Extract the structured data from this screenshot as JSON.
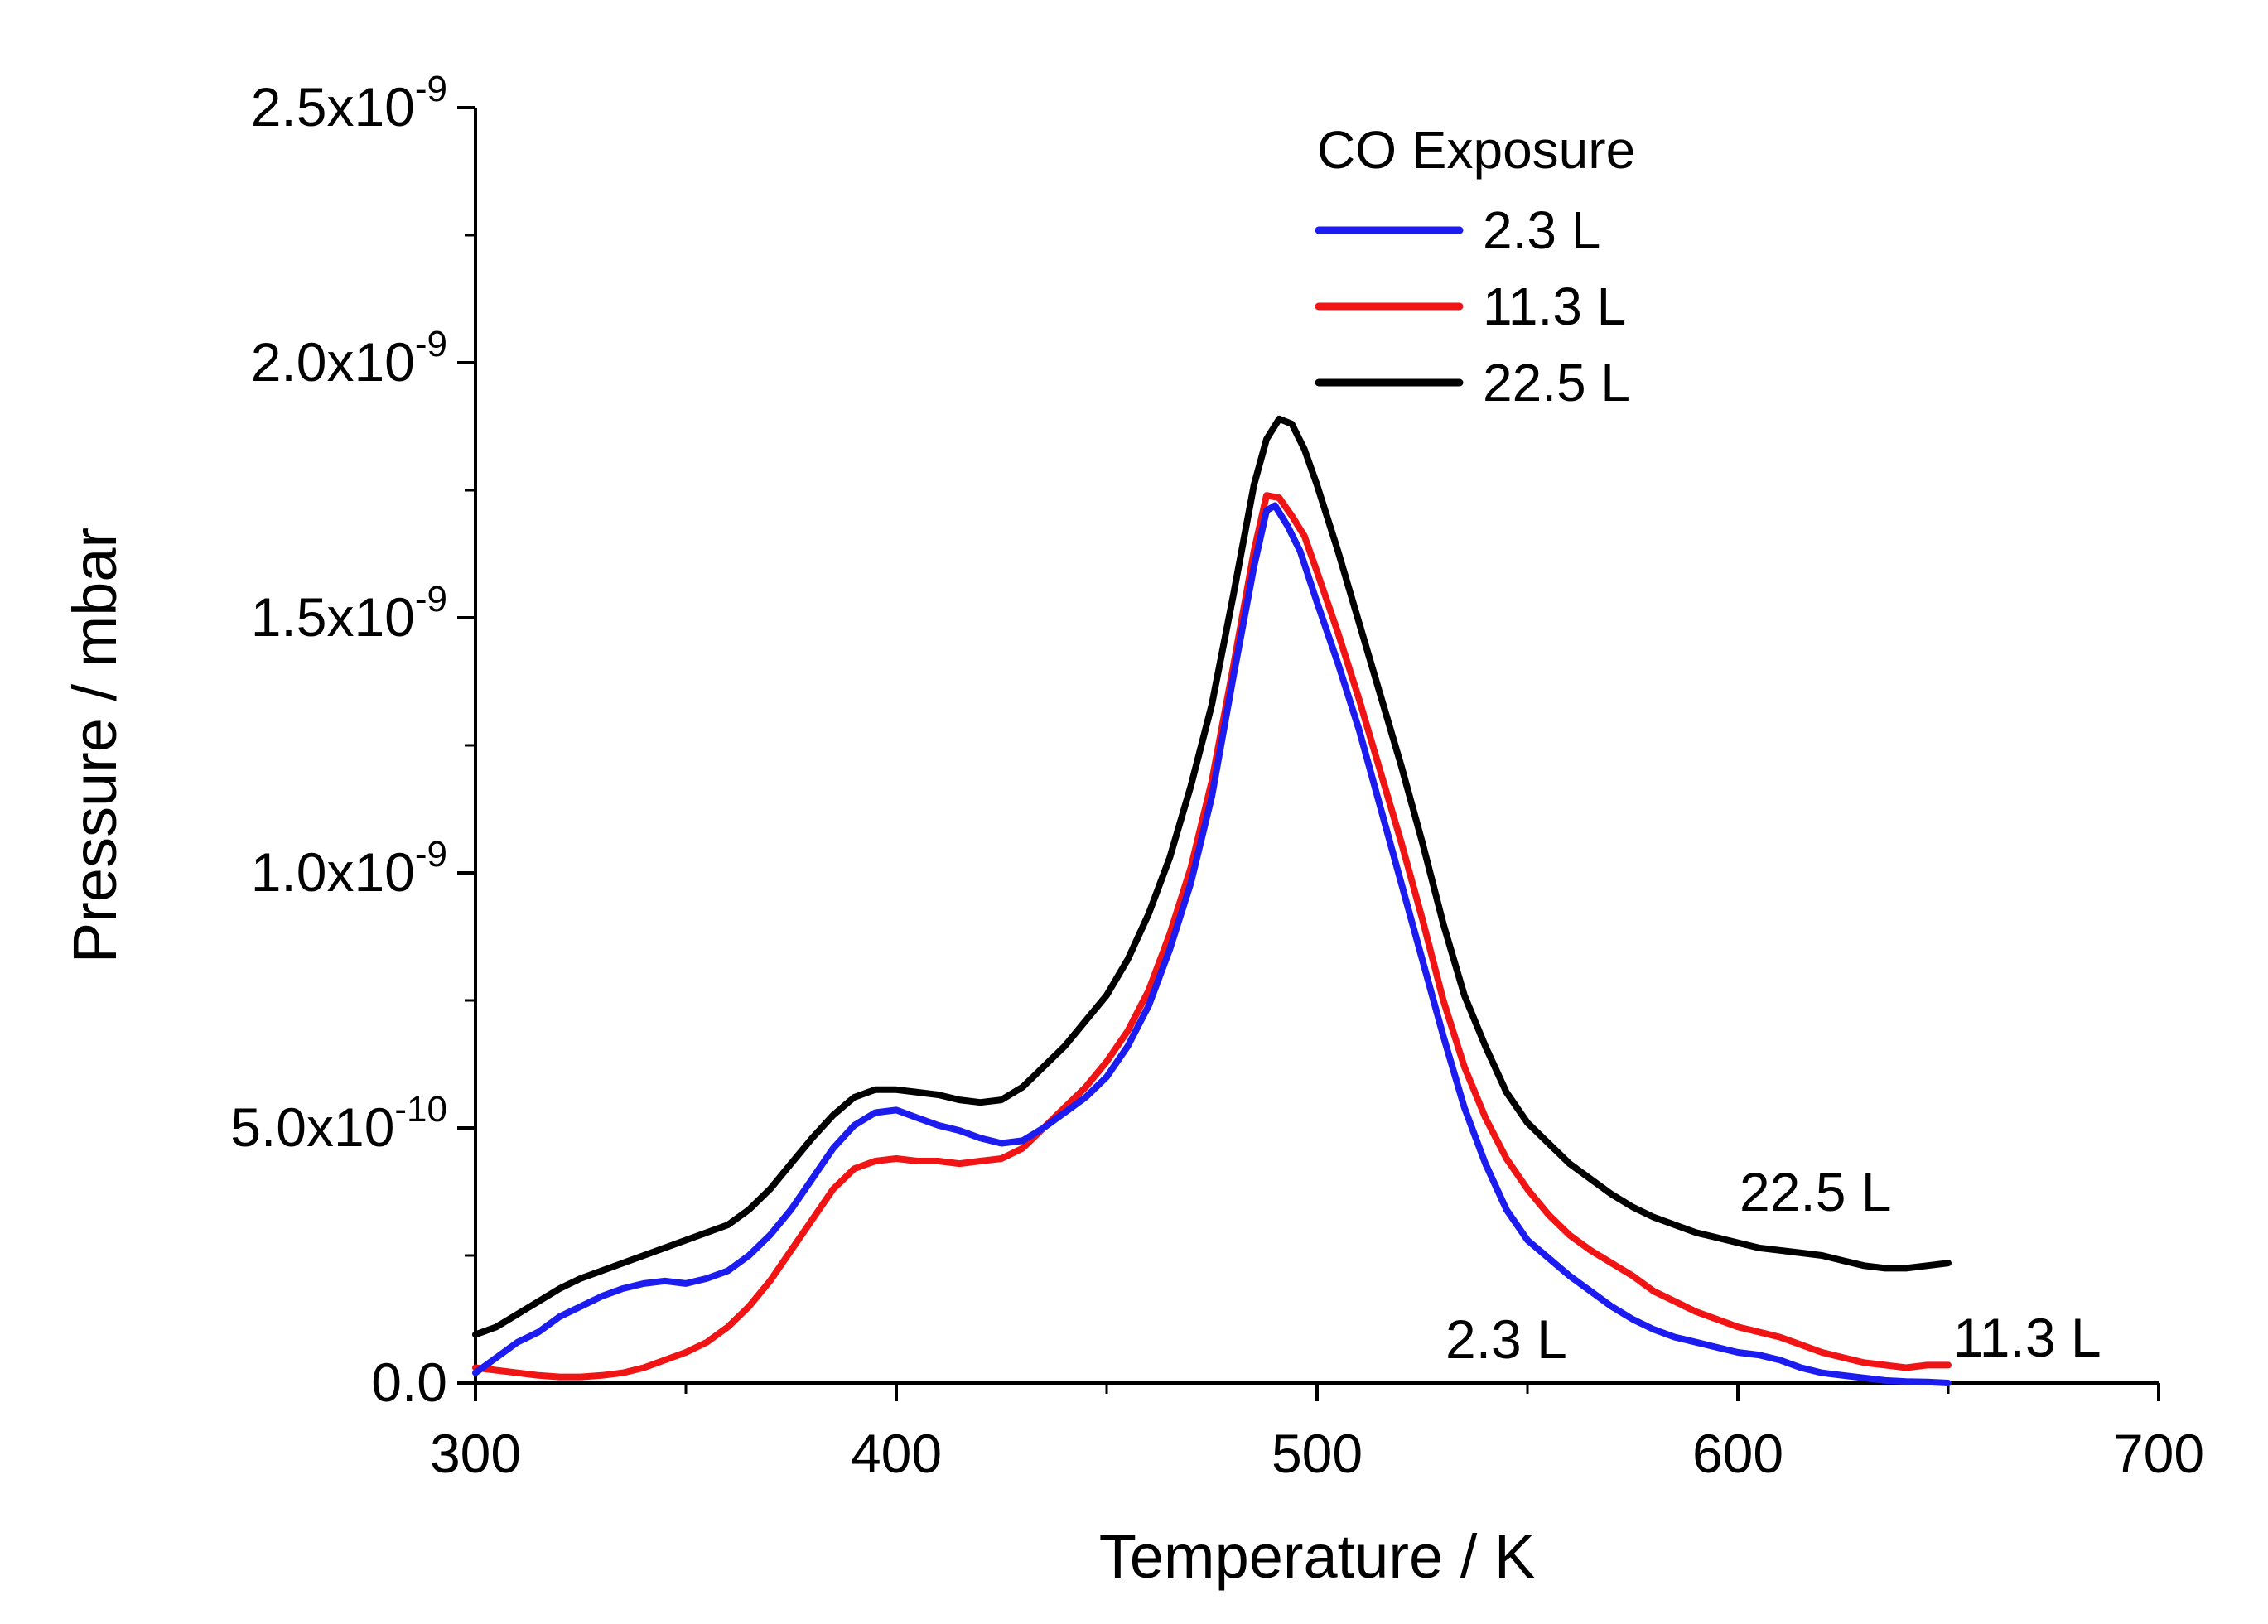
{
  "chart_data": {
    "type": "line",
    "title": "",
    "xlabel": "Temperature / K",
    "ylabel": "Pressure / mbar",
    "xlim": [
      300,
      700
    ],
    "ylim": [
      0,
      2.5e-09
    ],
    "grid": false,
    "x_ticks": [
      {
        "value": 300,
        "label": "300"
      },
      {
        "value": 400,
        "label": "400"
      },
      {
        "value": 500,
        "label": "500"
      },
      {
        "value": 600,
        "label": "600"
      },
      {
        "value": 700,
        "label": "700"
      }
    ],
    "y_ticks": [
      {
        "value": 0,
        "mantissa": "0.0",
        "exponent": ""
      },
      {
        "value": 5e-10,
        "mantissa": "5.0x10",
        "exponent": "-10"
      },
      {
        "value": 1e-09,
        "mantissa": "1.0x10",
        "exponent": "-9"
      },
      {
        "value": 1.5e-09,
        "mantissa": "1.5x10",
        "exponent": "-9"
      },
      {
        "value": 2e-09,
        "mantissa": "2.0x10",
        "exponent": "-9"
      },
      {
        "value": 2.5e-09,
        "mantissa": "2.5x10",
        "exponent": "-9"
      }
    ],
    "legend": {
      "title": "CO Exposure",
      "position": "top-center"
    },
    "series": [
      {
        "name": "2.3 L",
        "color": "#1c1cf0",
        "end_label": "2.3 L",
        "points": [
          [
            300,
            2e-11
          ],
          [
            305,
            5e-11
          ],
          [
            310,
            8e-11
          ],
          [
            315,
            1e-10
          ],
          [
            320,
            1.3e-10
          ],
          [
            325,
            1.5e-10
          ],
          [
            330,
            1.7e-10
          ],
          [
            335,
            1.85e-10
          ],
          [
            340,
            1.95e-10
          ],
          [
            345,
            2e-10
          ],
          [
            350,
            1.95e-10
          ],
          [
            355,
            2.05e-10
          ],
          [
            360,
            2.2e-10
          ],
          [
            365,
            2.5e-10
          ],
          [
            370,
            2.9e-10
          ],
          [
            375,
            3.4e-10
          ],
          [
            380,
            4e-10
          ],
          [
            385,
            4.6e-10
          ],
          [
            390,
            5.05e-10
          ],
          [
            395,
            5.3e-10
          ],
          [
            400,
            5.35e-10
          ],
          [
            405,
            5.2e-10
          ],
          [
            410,
            5.05e-10
          ],
          [
            415,
            4.95e-10
          ],
          [
            420,
            4.8e-10
          ],
          [
            425,
            4.7e-10
          ],
          [
            430,
            4.75e-10
          ],
          [
            435,
            5e-10
          ],
          [
            440,
            5.3e-10
          ],
          [
            445,
            5.6e-10
          ],
          [
            450,
            6e-10
          ],
          [
            455,
            6.6e-10
          ],
          [
            460,
            7.4e-10
          ],
          [
            465,
            8.5e-10
          ],
          [
            470,
            9.8e-10
          ],
          [
            475,
            1.15e-09
          ],
          [
            480,
            1.38e-09
          ],
          [
            485,
            1.6e-09
          ],
          [
            488,
            1.71e-09
          ],
          [
            490,
            1.72e-09
          ],
          [
            493,
            1.68e-09
          ],
          [
            496,
            1.63e-09
          ],
          [
            500,
            1.53e-09
          ],
          [
            505,
            1.41e-09
          ],
          [
            510,
            1.28e-09
          ],
          [
            515,
            1.13e-09
          ],
          [
            520,
            9.8e-10
          ],
          [
            525,
            8.3e-10
          ],
          [
            530,
            6.8e-10
          ],
          [
            535,
            5.4e-10
          ],
          [
            540,
            4.3e-10
          ],
          [
            545,
            3.4e-10
          ],
          [
            550,
            2.8e-10
          ],
          [
            555,
            2.45e-10
          ],
          [
            560,
            2.1e-10
          ],
          [
            565,
            1.8e-10
          ],
          [
            570,
            1.5e-10
          ],
          [
            575,
            1.25e-10
          ],
          [
            580,
            1.05e-10
          ],
          [
            585,
            9e-11
          ],
          [
            590,
            8e-11
          ],
          [
            595,
            7e-11
          ],
          [
            600,
            6e-11
          ],
          [
            605,
            5.5e-11
          ],
          [
            610,
            4.5e-11
          ],
          [
            615,
            3e-11
          ],
          [
            620,
            2e-11
          ],
          [
            625,
            1.5e-11
          ],
          [
            630,
            1e-11
          ],
          [
            635,
            5e-12
          ],
          [
            640,
            3e-12
          ],
          [
            645,
            2e-12
          ],
          [
            650,
            0.0
          ]
        ]
      },
      {
        "name": "11.3 L",
        "color": "#f01414",
        "end_label": "11.3 L",
        "points": [
          [
            300,
            3e-11
          ],
          [
            305,
            2.5e-11
          ],
          [
            310,
            2e-11
          ],
          [
            315,
            1.5e-11
          ],
          [
            320,
            1.2e-11
          ],
          [
            325,
            1.2e-11
          ],
          [
            330,
            1.5e-11
          ],
          [
            335,
            2e-11
          ],
          [
            340,
            3e-11
          ],
          [
            345,
            4.5e-11
          ],
          [
            350,
            6e-11
          ],
          [
            355,
            8e-11
          ],
          [
            360,
            1.1e-10
          ],
          [
            365,
            1.5e-10
          ],
          [
            370,
            2e-10
          ],
          [
            375,
            2.6e-10
          ],
          [
            380,
            3.2e-10
          ],
          [
            385,
            3.8e-10
          ],
          [
            390,
            4.2e-10
          ],
          [
            395,
            4.35e-10
          ],
          [
            400,
            4.4e-10
          ],
          [
            405,
            4.35e-10
          ],
          [
            410,
            4.35e-10
          ],
          [
            415,
            4.3e-10
          ],
          [
            420,
            4.35e-10
          ],
          [
            425,
            4.4e-10
          ],
          [
            430,
            4.6e-10
          ],
          [
            435,
            5e-10
          ],
          [
            440,
            5.4e-10
          ],
          [
            445,
            5.8e-10
          ],
          [
            450,
            6.3e-10
          ],
          [
            455,
            6.9e-10
          ],
          [
            460,
            7.7e-10
          ],
          [
            465,
            8.8e-10
          ],
          [
            470,
            1.01e-09
          ],
          [
            475,
            1.18e-09
          ],
          [
            480,
            1.4e-09
          ],
          [
            485,
            1.63e-09
          ],
          [
            488,
            1.74e-09
          ],
          [
            491,
            1.735e-09
          ],
          [
            494,
            1.7e-09
          ],
          [
            497,
            1.66e-09
          ],
          [
            500,
            1.59e-09
          ],
          [
            505,
            1.47e-09
          ],
          [
            510,
            1.34e-09
          ],
          [
            515,
            1.2e-09
          ],
          [
            520,
            1.06e-09
          ],
          [
            525,
            9.1e-10
          ],
          [
            530,
            7.5e-10
          ],
          [
            535,
            6.2e-10
          ],
          [
            540,
            5.2e-10
          ],
          [
            545,
            4.4e-10
          ],
          [
            550,
            3.8e-10
          ],
          [
            555,
            3.3e-10
          ],
          [
            560,
            2.9e-10
          ],
          [
            565,
            2.6e-10
          ],
          [
            570,
            2.35e-10
          ],
          [
            575,
            2.1e-10
          ],
          [
            580,
            1.8e-10
          ],
          [
            585,
            1.6e-10
          ],
          [
            590,
            1.4e-10
          ],
          [
            595,
            1.25e-10
          ],
          [
            600,
            1.1e-10
          ],
          [
            605,
            1e-10
          ],
          [
            610,
            9e-11
          ],
          [
            615,
            7.5e-11
          ],
          [
            620,
            6e-11
          ],
          [
            625,
            5e-11
          ],
          [
            630,
            4e-11
          ],
          [
            635,
            3.5e-11
          ],
          [
            640,
            3e-11
          ],
          [
            645,
            3.5e-11
          ],
          [
            650,
            3.5e-11
          ]
        ]
      },
      {
        "name": "22.5 L",
        "color": "#000000",
        "end_label": "22.5 L",
        "points": [
          [
            300,
            9.5e-11
          ],
          [
            305,
            1.1e-10
          ],
          [
            310,
            1.35e-10
          ],
          [
            315,
            1.6e-10
          ],
          [
            320,
            1.85e-10
          ],
          [
            325,
            2.05e-10
          ],
          [
            330,
            2.2e-10
          ],
          [
            335,
            2.35e-10
          ],
          [
            340,
            2.5e-10
          ],
          [
            345,
            2.65e-10
          ],
          [
            350,
            2.8e-10
          ],
          [
            355,
            2.95e-10
          ],
          [
            360,
            3.1e-10
          ],
          [
            365,
            3.4e-10
          ],
          [
            370,
            3.8e-10
          ],
          [
            375,
            4.3e-10
          ],
          [
            380,
            4.8e-10
          ],
          [
            385,
            5.25e-10
          ],
          [
            390,
            5.6e-10
          ],
          [
            395,
            5.75e-10
          ],
          [
            400,
            5.75e-10
          ],
          [
            405,
            5.7e-10
          ],
          [
            410,
            5.65e-10
          ],
          [
            415,
            5.55e-10
          ],
          [
            420,
            5.5e-10
          ],
          [
            425,
            5.55e-10
          ],
          [
            430,
            5.8e-10
          ],
          [
            435,
            6.2e-10
          ],
          [
            440,
            6.6e-10
          ],
          [
            445,
            7.1e-10
          ],
          [
            450,
            7.6e-10
          ],
          [
            455,
            8.3e-10
          ],
          [
            460,
            9.2e-10
          ],
          [
            465,
            1.03e-09
          ],
          [
            470,
            1.17e-09
          ],
          [
            475,
            1.33e-09
          ],
          [
            480,
            1.54e-09
          ],
          [
            485,
            1.76e-09
          ],
          [
            488,
            1.85e-09
          ],
          [
            491,
            1.89e-09
          ],
          [
            494,
            1.88e-09
          ],
          [
            497,
            1.83e-09
          ],
          [
            500,
            1.76e-09
          ],
          [
            505,
            1.63e-09
          ],
          [
            510,
            1.49e-09
          ],
          [
            515,
            1.35e-09
          ],
          [
            520,
            1.21e-09
          ],
          [
            525,
            1.06e-09
          ],
          [
            530,
            9e-10
          ],
          [
            535,
            7.6e-10
          ],
          [
            540,
            6.6e-10
          ],
          [
            545,
            5.7e-10
          ],
          [
            550,
            5.1e-10
          ],
          [
            555,
            4.7e-10
          ],
          [
            560,
            4.3e-10
          ],
          [
            565,
            4e-10
          ],
          [
            570,
            3.7e-10
          ],
          [
            575,
            3.45e-10
          ],
          [
            580,
            3.25e-10
          ],
          [
            585,
            3.1e-10
          ],
          [
            590,
            2.95e-10
          ],
          [
            595,
            2.85e-10
          ],
          [
            600,
            2.75e-10
          ],
          [
            605,
            2.65e-10
          ],
          [
            610,
            2.6e-10
          ],
          [
            615,
            2.55e-10
          ],
          [
            620,
            2.5e-10
          ],
          [
            625,
            2.4e-10
          ],
          [
            630,
            2.3e-10
          ],
          [
            635,
            2.25e-10
          ],
          [
            640,
            2.25e-10
          ],
          [
            645,
            2.3e-10
          ],
          [
            650,
            2.35e-10
          ]
        ]
      }
    ]
  }
}
